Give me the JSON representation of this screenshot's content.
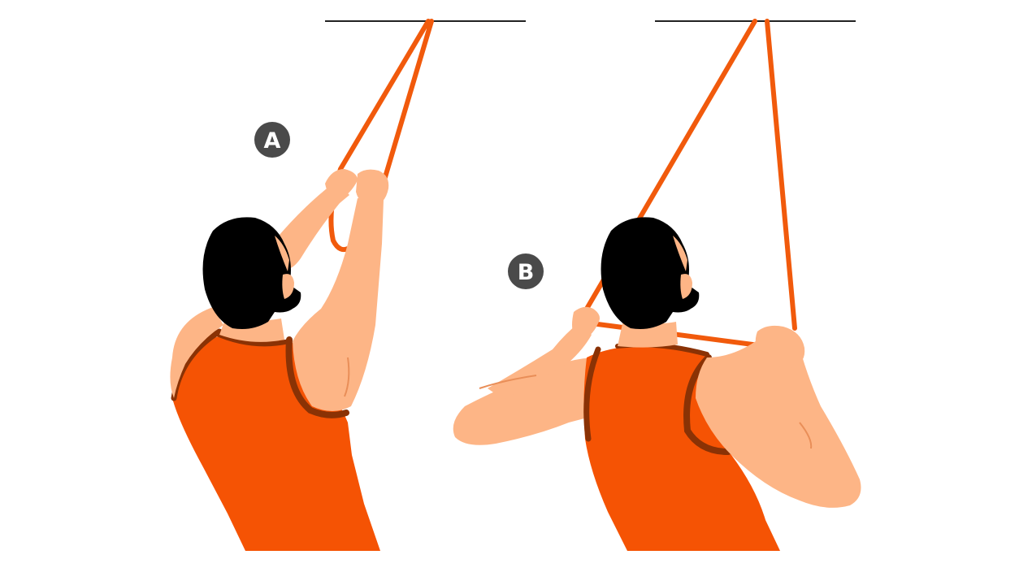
{
  "illustration": {
    "panels": [
      {
        "label": "A"
      },
      {
        "label": "B"
      }
    ],
    "colors": {
      "background": "#ffffff",
      "band": "#f15a0c",
      "shirt": "#f55304",
      "shirt_trim": "#8a3205",
      "skin": "#fdb586",
      "skin_line": "#e98e58",
      "hair": "#000000",
      "anchor_bar": "#222222",
      "badge_fill": "#4a4a4a",
      "badge_text": "#ffffff"
    }
  }
}
